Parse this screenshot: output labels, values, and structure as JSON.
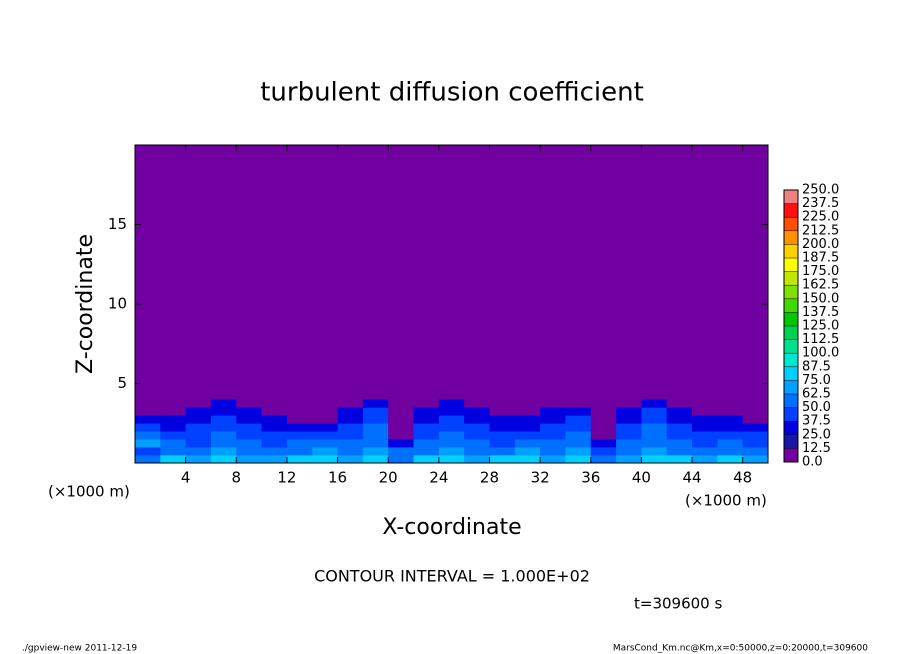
{
  "chart_data": {
    "type": "contour",
    "title": "turbulent diffusion coefficient",
    "xlabel": "X-coordinate",
    "ylabel": "Z-coordinate",
    "x_unit": "(×1000 m)",
    "y_unit": "(×1000 m)",
    "annotation": "CONTOUR INTERVAL = 1.000E+02",
    "time_label": "t=309600 s",
    "footer_left": "./gpview-new   2011-12-19",
    "footer_right": "MarsCond_Km.nc@Km,x=0:50000,z=0:20000,t=309600",
    "xlim": [
      0,
      50
    ],
    "ylim": [
      0,
      20
    ],
    "xticks": [
      4,
      8,
      12,
      16,
      20,
      24,
      28,
      32,
      36,
      40,
      44,
      48
    ],
    "yticks": [
      5,
      10,
      15
    ],
    "background_color": "#7000a0",
    "levels": [
      {
        "value": 0,
        "label": "0.0"
      },
      12.5,
      {
        "value": 25,
        "label": "25.0"
      },
      37.5,
      {
        "value": 50,
        "label": "50.0"
      },
      62.5,
      {
        "value": 75,
        "label": "75.0"
      },
      87.5,
      {
        "value": 100,
        "label": "100.0"
      },
      112.5,
      {
        "value": 125,
        "label": "125.0"
      },
      137.5,
      {
        "value": 150,
        "label": "150.0"
      },
      162.5,
      {
        "value": 175,
        "label": "175.0"
      },
      187.5,
      {
        "value": 200,
        "label": "200.0"
      },
      212.5,
      {
        "value": 225,
        "label": "225.0"
      },
      237.5,
      {
        "value": 250,
        "label": "250.0"
      }
    ],
    "colors": [
      "#7000a0",
      "#1818a8",
      "#0000e0",
      "#0040ff",
      "#0070ff",
      "#00a0ff",
      "#00d0ff",
      "#00e8d0",
      "#00e090",
      "#00d050",
      "#00c800",
      "#40d800",
      "#80e000",
      "#c0e800",
      "#ffff00",
      "#ffd000",
      "#ff9000",
      "#ff5000",
      "#ff1010",
      "#f08080"
    ],
    "x": [
      1,
      3,
      5,
      7,
      9,
      11,
      13,
      15,
      17,
      19,
      21,
      23,
      25,
      27,
      29,
      31,
      33,
      35,
      37,
      39,
      41,
      43,
      45,
      47,
      49
    ],
    "z": [
      0.25,
      0.75,
      1.25,
      1.75,
      2.25,
      2.75,
      3.25,
      3.75
    ],
    "values": [
      [
        60,
        75,
        70,
        80,
        65,
        70,
        75,
        80,
        70,
        85,
        60,
        75,
        80,
        70,
        75,
        80,
        70,
        85,
        55,
        70,
        80,
        75,
        70,
        80,
        65
      ],
      [
        45,
        60,
        55,
        65,
        60,
        55,
        60,
        65,
        60,
        70,
        50,
        60,
        65,
        55,
        60,
        65,
        60,
        70,
        40,
        60,
        65,
        60,
        55,
        60,
        55
      ],
      [
        70,
        50,
        45,
        55,
        50,
        45,
        50,
        55,
        50,
        60,
        35,
        50,
        55,
        50,
        45,
        55,
        50,
        60,
        25,
        50,
        60,
        50,
        45,
        50,
        45
      ],
      [
        50,
        45,
        40,
        50,
        45,
        40,
        45,
        40,
        45,
        55,
        5,
        45,
        50,
        45,
        40,
        45,
        40,
        50,
        5,
        45,
        55,
        45,
        40,
        45,
        40
      ],
      [
        40,
        35,
        40,
        45,
        40,
        35,
        35,
        30,
        40,
        50,
        3,
        40,
        45,
        40,
        35,
        35,
        40,
        45,
        3,
        40,
        50,
        40,
        35,
        35,
        30
      ],
      [
        30,
        30,
        35,
        40,
        35,
        25,
        10,
        8,
        35,
        45,
        2,
        35,
        40,
        35,
        25,
        25,
        35,
        40,
        2,
        35,
        45,
        35,
        25,
        25,
        8
      ],
      [
        5,
        5,
        25,
        35,
        25,
        5,
        3,
        2,
        25,
        40,
        2,
        25,
        35,
        25,
        5,
        5,
        25,
        30,
        2,
        25,
        40,
        25,
        5,
        5,
        3
      ],
      [
        2,
        2,
        5,
        25,
        5,
        2,
        2,
        2,
        5,
        25,
        2,
        5,
        25,
        5,
        2,
        2,
        5,
        5,
        2,
        5,
        25,
        5,
        2,
        2,
        2
      ]
    ]
  }
}
